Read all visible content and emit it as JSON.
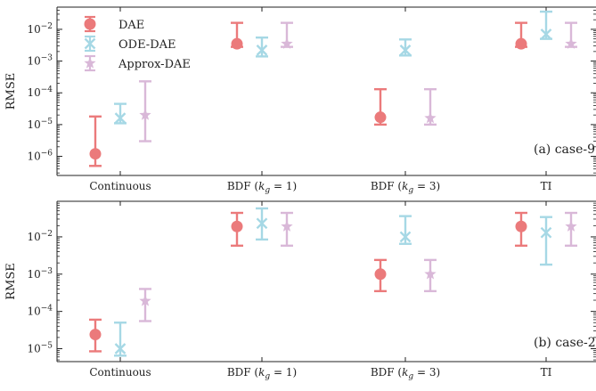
{
  "chart_data": [
    {
      "type": "scatter",
      "yscale": "log",
      "ylabel": "RMSE",
      "ylim": [
        2.5e-07,
        0.05
      ],
      "yticks": [
        1e-06,
        1e-05,
        0.0001,
        0.001,
        0.01
      ],
      "ytick_labels": [
        {
          "base": "10",
          "exp": "−6"
        },
        {
          "base": "10",
          "exp": "−5"
        },
        {
          "base": "10",
          "exp": "−4"
        },
        {
          "base": "10",
          "exp": "−3"
        },
        {
          "base": "10",
          "exp": "−2"
        }
      ],
      "categories": [
        "Continuous",
        "BDF (k_g = 1)",
        "BDF (k_g = 3)",
        "TI"
      ],
      "category_labels": [
        {
          "text": "Continuous"
        },
        {
          "text": "BDF (",
          "italic": "k",
          "sub": "g",
          "rest": " = 1)"
        },
        {
          "text": "BDF (",
          "italic": "k",
          "sub": "g",
          "rest": " = 3)"
        },
        {
          "text": "TI"
        }
      ],
      "annotation": "(a) case-9",
      "legend": {
        "placement": "top-left",
        "entries": [
          "DAE",
          "ODE-DAE",
          "Approx-DAE"
        ]
      },
      "series": [
        {
          "name": "DAE",
          "color": "#eb7a7b",
          "marker": "circle",
          "points": [
            {
              "value": 1.2e-06,
              "low": 5e-07,
              "high": 1.8e-05
            },
            {
              "value": 0.0035,
              "low": 0.0028,
              "high": 0.016
            },
            {
              "value": 1.7e-05,
              "low": 1e-05,
              "high": 0.00013
            },
            {
              "value": 0.0035,
              "low": 0.0028,
              "high": 0.016
            }
          ]
        },
        {
          "name": "ODE-DAE",
          "color": "#a6d8e5",
          "marker": "x",
          "points": [
            {
              "value": 1.6e-05,
              "low": 1.1e-05,
              "high": 4.5e-05
            },
            {
              "value": 0.0022,
              "low": 0.0014,
              "high": 0.0055
            },
            {
              "value": 0.0022,
              "low": 0.0015,
              "high": 0.0048
            },
            {
              "value": 0.007,
              "low": 0.005,
              "high": 0.036
            }
          ]
        },
        {
          "name": "Approx-DAE",
          "color": "#d9b8d8",
          "marker": "star",
          "points": [
            {
              "value": 2e-05,
              "low": 3e-06,
              "high": 0.00023
            },
            {
              "value": 0.0035,
              "low": 0.0028,
              "high": 0.016
            },
            {
              "value": 1.6e-05,
              "low": 1e-05,
              "high": 0.00013
            },
            {
              "value": 0.0035,
              "low": 0.0028,
              "high": 0.016
            }
          ]
        }
      ]
    },
    {
      "type": "scatter",
      "yscale": "log",
      "ylabel": "RMSE",
      "ylim": [
        4.5e-06,
        0.09
      ],
      "yticks": [
        1e-05,
        0.0001,
        0.001,
        0.01
      ],
      "ytick_labels": [
        {
          "base": "10",
          "exp": "−5"
        },
        {
          "base": "10",
          "exp": "−4"
        },
        {
          "base": "10",
          "exp": "−3"
        },
        {
          "base": "10",
          "exp": "−2"
        }
      ],
      "categories": [
        "Continuous",
        "BDF (k_g = 1)",
        "BDF (k_g = 3)",
        "TI"
      ],
      "category_labels": [
        {
          "text": "Continuous"
        },
        {
          "text": "BDF (",
          "italic": "k",
          "sub": "g",
          "rest": " = 1)"
        },
        {
          "text": "BDF (",
          "italic": "k",
          "sub": "g",
          "rest": " = 3)"
        },
        {
          "text": "TI"
        }
      ],
      "annotation": "(b) case-200",
      "series": [
        {
          "name": "DAE",
          "color": "#eb7a7b",
          "marker": "circle",
          "points": [
            {
              "value": 2.4e-05,
              "low": 8.5e-06,
              "high": 6e-05
            },
            {
              "value": 0.019,
              "low": 0.0058,
              "high": 0.044
            },
            {
              "value": 0.001,
              "low": 0.00035,
              "high": 0.0024
            },
            {
              "value": 0.019,
              "low": 0.0058,
              "high": 0.044
            }
          ]
        },
        {
          "name": "ODE-DAE",
          "color": "#a6d8e5",
          "marker": "x",
          "points": [
            {
              "value": 1e-05,
              "low": 6.5e-06,
              "high": 5e-05
            },
            {
              "value": 0.023,
              "low": 0.0085,
              "high": 0.058
            },
            {
              "value": 0.01,
              "low": 0.0065,
              "high": 0.036
            },
            {
              "value": 0.013,
              "low": 0.0018,
              "high": 0.034
            }
          ]
        },
        {
          "name": "Approx-DAE",
          "color": "#d9b8d8",
          "marker": "star",
          "points": [
            {
              "value": 0.00019,
              "low": 5.5e-05,
              "high": 0.0004
            },
            {
              "value": 0.019,
              "low": 0.0058,
              "high": 0.044
            },
            {
              "value": 0.001,
              "low": 0.00035,
              "high": 0.0024
            },
            {
              "value": 0.019,
              "low": 0.0058,
              "high": 0.044
            }
          ]
        }
      ]
    }
  ]
}
